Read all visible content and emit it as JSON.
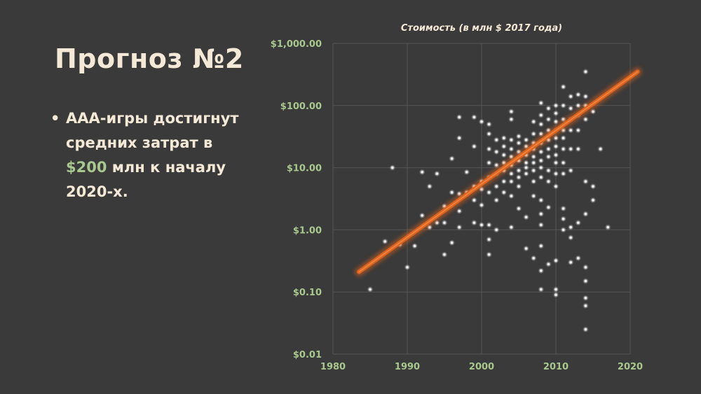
{
  "slide": {
    "title": "Прогноз №2",
    "bullet": {
      "line1": "AAA-игры достигнут",
      "line2": "средних затрат в",
      "amount": "$200",
      "line3_rest": " млн к началу",
      "line4": "2020-х."
    }
  },
  "colors": {
    "background": "#3a3a3a",
    "text": "#f3e9d6",
    "accent": "#a8c88e",
    "trend": "#e0641e",
    "points": "#d9d9d9"
  },
  "chart_data": {
    "type": "scatter",
    "title": "Стоимость (в млн $ 2017 года)",
    "xlabel": "",
    "ylabel": "",
    "xlim": [
      1980,
      2020
    ],
    "ylim": [
      0.01,
      1000
    ],
    "y_scale": "log",
    "x_ticks": [
      "1980",
      "1990",
      "2000",
      "2010",
      "2020"
    ],
    "y_ticks": [
      "$1,000.00",
      "$100.00",
      "$10.00",
      "$1.00",
      "$0.10",
      "$0.01"
    ],
    "grid": true,
    "trend_line": {
      "x": [
        1983.5,
        2021.0
      ],
      "y": [
        0.21,
        350
      ]
    },
    "points": [
      [
        1985,
        0.11
      ],
      [
        1987,
        0.65
      ],
      [
        1988,
        10
      ],
      [
        1989,
        0.58
      ],
      [
        1990,
        0.25
      ],
      [
        1991,
        0.55
      ],
      [
        1992,
        1.7
      ],
      [
        1992,
        8.5
      ],
      [
        1993,
        5
      ],
      [
        1993,
        1.1
      ],
      [
        1994,
        8
      ],
      [
        1994,
        1.3
      ],
      [
        1995,
        2.4
      ],
      [
        1995,
        1.3
      ],
      [
        1995,
        0.4
      ],
      [
        1996,
        14
      ],
      [
        1996,
        4
      ],
      [
        1996,
        0.62
      ],
      [
        1997,
        65
      ],
      [
        1997,
        30
      ],
      [
        1997,
        3.8
      ],
      [
        1997,
        2
      ],
      [
        1997,
        1.1
      ],
      [
        1998,
        8.5
      ],
      [
        1998,
        4
      ],
      [
        1999,
        65
      ],
      [
        1999,
        22
      ],
      [
        1999,
        5
      ],
      [
        1999,
        3
      ],
      [
        1999,
        1.3
      ],
      [
        2000,
        55
      ],
      [
        2000,
        6
      ],
      [
        2000,
        4.5
      ],
      [
        2000,
        2.5
      ],
      [
        2000,
        1.2
      ],
      [
        2001,
        50
      ],
      [
        2001,
        35
      ],
      [
        2001,
        20
      ],
      [
        2001,
        12
      ],
      [
        2001,
        7
      ],
      [
        2001,
        4
      ],
      [
        2001,
        1.2
      ],
      [
        2001,
        0.7
      ],
      [
        2001,
        0.4
      ],
      [
        2002,
        28
      ],
      [
        2002,
        18
      ],
      [
        2002,
        11
      ],
      [
        2002,
        8
      ],
      [
        2002,
        5
      ],
      [
        2002,
        3
      ],
      [
        2002,
        1
      ],
      [
        2003,
        30
      ],
      [
        2003,
        22
      ],
      [
        2003,
        16
      ],
      [
        2003,
        12
      ],
      [
        2003,
        9
      ],
      [
        2003,
        6
      ],
      [
        2003,
        4
      ],
      [
        2004,
        80
      ],
      [
        2004,
        60
      ],
      [
        2004,
        28
      ],
      [
        2004,
        20
      ],
      [
        2004,
        15
      ],
      [
        2004,
        11
      ],
      [
        2004,
        8
      ],
      [
        2004,
        6
      ],
      [
        2004,
        3.5
      ],
      [
        2004,
        1.1
      ],
      [
        2005,
        32
      ],
      [
        2005,
        25
      ],
      [
        2005,
        18
      ],
      [
        2005,
        13
      ],
      [
        2005,
        9
      ],
      [
        2005,
        7
      ],
      [
        2005,
        5
      ],
      [
        2005,
        2.2
      ],
      [
        2006,
        28
      ],
      [
        2006,
        22
      ],
      [
        2006,
        16
      ],
      [
        2006,
        12
      ],
      [
        2006,
        10
      ],
      [
        2006,
        8
      ],
      [
        2006,
        0.5
      ],
      [
        2006,
        1.6
      ],
      [
        2007,
        55
      ],
      [
        2007,
        35
      ],
      [
        2007,
        25
      ],
      [
        2007,
        20
      ],
      [
        2007,
        15
      ],
      [
        2007,
        12
      ],
      [
        2007,
        9
      ],
      [
        2007,
        6
      ],
      [
        2007,
        3.5
      ],
      [
        2007,
        0.35
      ],
      [
        2008,
        110
      ],
      [
        2008,
        70
      ],
      [
        2008,
        50
      ],
      [
        2008,
        35
      ],
      [
        2008,
        25
      ],
      [
        2008,
        18
      ],
      [
        2008,
        13
      ],
      [
        2008,
        10
      ],
      [
        2008,
        7
      ],
      [
        2008,
        3
      ],
      [
        2008,
        1.8
      ],
      [
        2008,
        1.2
      ],
      [
        2008,
        0.55
      ],
      [
        2008,
        0.22
      ],
      [
        2008,
        0.11
      ],
      [
        2009,
        90
      ],
      [
        2009,
        60
      ],
      [
        2009,
        40
      ],
      [
        2009,
        28
      ],
      [
        2009,
        20
      ],
      [
        2009,
        15
      ],
      [
        2009,
        9
      ],
      [
        2009,
        6
      ],
      [
        2009,
        2.3
      ],
      [
        2009,
        0.28
      ],
      [
        2010,
        100
      ],
      [
        2010,
        75
      ],
      [
        2010,
        55
      ],
      [
        2010,
        40
      ],
      [
        2010,
        30
      ],
      [
        2010,
        22
      ],
      [
        2010,
        16
      ],
      [
        2010,
        12
      ],
      [
        2010,
        8
      ],
      [
        2010,
        5
      ],
      [
        2010,
        0.32
      ],
      [
        2010,
        0.11
      ],
      [
        2010,
        0.09
      ],
      [
        2011,
        200
      ],
      [
        2011,
        100
      ],
      [
        2011,
        60
      ],
      [
        2011,
        40
      ],
      [
        2011,
        30
      ],
      [
        2011,
        20
      ],
      [
        2011,
        12
      ],
      [
        2011,
        8
      ],
      [
        2011,
        2.2
      ],
      [
        2011,
        1.5
      ],
      [
        2011,
        1
      ],
      [
        2012,
        140
      ],
      [
        2012,
        90
      ],
      [
        2012,
        60
      ],
      [
        2012,
        40
      ],
      [
        2012,
        20
      ],
      [
        2012,
        9
      ],
      [
        2012,
        1.1
      ],
      [
        2012,
        0.75
      ],
      [
        2012,
        0.3
      ],
      [
        2013,
        150
      ],
      [
        2013,
        100
      ],
      [
        2013,
        70
      ],
      [
        2013,
        40
      ],
      [
        2013,
        20
      ],
      [
        2013,
        1.3
      ],
      [
        2013,
        0.35
      ],
      [
        2014,
        350
      ],
      [
        2014,
        140
      ],
      [
        2014,
        100
      ],
      [
        2014,
        60
      ],
      [
        2014,
        6
      ],
      [
        2014,
        1.8
      ],
      [
        2014,
        0.25
      ],
      [
        2014,
        0.15
      ],
      [
        2014,
        0.08
      ],
      [
        2014,
        0.06
      ],
      [
        2014,
        0.025
      ],
      [
        2015,
        80
      ],
      [
        2015,
        5
      ],
      [
        2015,
        3
      ],
      [
        2016,
        20
      ],
      [
        2017,
        1.1
      ]
    ]
  }
}
